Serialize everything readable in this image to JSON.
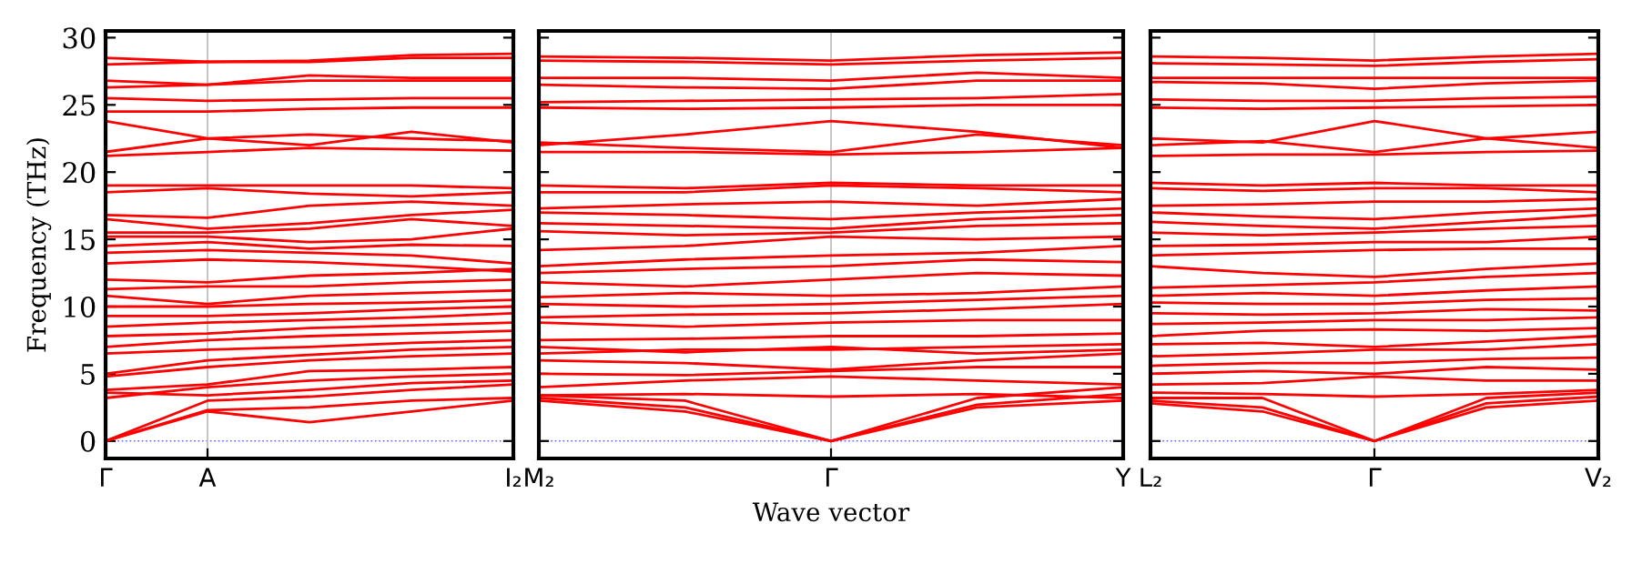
{
  "chart_data": [
    {
      "type": "line",
      "ylabel": "Frequency (THz)",
      "categories": [
        "Γ",
        "A",
        null,
        null,
        "I₂"
      ],
      "ylim": [
        -1.3,
        30.5
      ],
      "yticks": [
        0,
        5,
        10,
        15,
        20,
        25,
        30
      ],
      "legend": false,
      "marker": "none",
      "line_style": "solid",
      "ref_lines": [
        {
          "axis": "y",
          "value": 0,
          "color": "#6666ff",
          "line_style": "dotted"
        },
        {
          "axis": "x",
          "value": "A",
          "color": "#bbbbbb",
          "line_style": "solid"
        }
      ],
      "series": [
        {
          "color": "#ff0000",
          "values": [
            0,
            2.2,
            1.4,
            2.2,
            3.0
          ]
        },
        {
          "color": "#ff0000",
          "values": [
            0,
            2.3,
            2.5,
            3,
            3.2
          ]
        },
        {
          "color": "#ff0000",
          "values": [
            0,
            3.0,
            3.3,
            3.8,
            4.2
          ]
        },
        {
          "color": "#ff0000",
          "values": [
            3.2,
            4,
            4.5,
            4.8,
            5
          ]
        },
        {
          "color": "#ff0000",
          "values": [
            3.6,
            3.4,
            3.8,
            4.3,
            4.5
          ]
        },
        {
          "color": "#ff0000",
          "values": [
            3.8,
            4.2,
            5.2,
            5.3,
            5.5
          ]
        },
        {
          "color": "#ff0000",
          "values": [
            4.8,
            5.5,
            6,
            6.3,
            6.5
          ]
        },
        {
          "color": "#ff0000",
          "values": [
            5.0,
            6.0,
            6.4,
            6.8,
            7
          ]
        },
        {
          "color": "#ff0000",
          "values": [
            6.5,
            6.8,
            7.0,
            7.3,
            7.5
          ]
        },
        {
          "color": "#ff0000",
          "values": [
            7,
            7.5,
            7.8,
            8,
            8.2
          ]
        },
        {
          "color": "#ff0000",
          "values": [
            7.8,
            8.0,
            8.4,
            8.6,
            8.8
          ]
        },
        {
          "color": "#ff0000",
          "values": [
            8.5,
            8.8,
            9,
            9.2,
            9.5
          ]
        },
        {
          "color": "#ff0000",
          "values": [
            9.3,
            9.3,
            9.5,
            9.8,
            10
          ]
        },
        {
          "color": "#ff0000",
          "values": [
            10,
            10,
            10.2,
            10.3,
            10.5
          ]
        },
        {
          "color": "#ff0000",
          "values": [
            10.8,
            10.2,
            10.8,
            11,
            11.2
          ]
        },
        {
          "color": "#ff0000",
          "values": [
            11.3,
            11.5,
            11.5,
            11.8,
            12
          ]
        },
        {
          "color": "#ff0000",
          "values": [
            12,
            11.8,
            12.3,
            12.5,
            12.8
          ]
        },
        {
          "color": "#ff0000",
          "values": [
            13.2,
            13.5,
            13.3,
            13,
            12.6
          ]
        },
        {
          "color": "#ff0000",
          "values": [
            14,
            14.2,
            14,
            13.8,
            13.2
          ]
        },
        {
          "color": "#ff0000",
          "values": [
            14.5,
            14.8,
            14.3,
            14.6,
            14.5
          ]
        },
        {
          "color": "#ff0000",
          "values": [
            15.2,
            15.2,
            14.8,
            15,
            15.8
          ]
        },
        {
          "color": "#ff0000",
          "values": [
            15.5,
            15.5,
            15.8,
            16.5,
            16
          ]
        },
        {
          "color": "#ff0000",
          "values": [
            16.5,
            15.8,
            16.2,
            16.8,
            17.2
          ]
        },
        {
          "color": "#ff0000",
          "values": [
            16.8,
            16.6,
            17.5,
            17.8,
            17.5
          ]
        },
        {
          "color": "#ff0000",
          "values": [
            18.5,
            18.8,
            18.4,
            18.2,
            18.5
          ]
        },
        {
          "color": "#ff0000",
          "values": [
            19,
            19,
            19,
            19,
            18.8
          ]
        },
        {
          "color": "#ff0000",
          "values": [
            21.2,
            21.5,
            21.8,
            21.7,
            21.6
          ]
        },
        {
          "color": "#ff0000",
          "values": [
            21.5,
            22.5,
            22.8,
            22.5,
            22.3
          ]
        },
        {
          "color": "#ff0000",
          "values": [
            23.8,
            22.5,
            22,
            23,
            22.2
          ]
        },
        {
          "color": "#ff0000",
          "values": [
            24.5,
            24.5,
            24.7,
            24.8,
            24.8
          ]
        },
        {
          "color": "#ff0000",
          "values": [
            25.5,
            25.3,
            25.4,
            25.5,
            25.5
          ]
        },
        {
          "color": "#ff0000",
          "values": [
            26.3,
            26.5,
            26.8,
            26.8,
            26.8
          ]
        },
        {
          "color": "#ff0000",
          "values": [
            26.8,
            26.5,
            27.2,
            27,
            27
          ]
        },
        {
          "color": "#ff0000",
          "values": [
            28,
            28.2,
            28.2,
            28.5,
            28.5
          ]
        },
        {
          "color": "#ff0000",
          "values": [
            28.5,
            28.2,
            28.3,
            28.7,
            28.8
          ]
        }
      ]
    },
    {
      "type": "line",
      "xlabel": "Wave vector",
      "categories": [
        "M₂",
        null,
        "Γ",
        null,
        "Y"
      ],
      "ylim": [
        -1.3,
        30.5
      ],
      "yticks": [
        0,
        5,
        10,
        15,
        20,
        25,
        30
      ],
      "tick_labels": "x",
      "legend": false,
      "marker": "none",
      "line_style": "solid",
      "ref_lines": [
        {
          "axis": "y",
          "value": 0,
          "color": "#6666ff",
          "line_style": "dotted"
        },
        {
          "axis": "x",
          "value": "Γ",
          "color": "#bbbbbb",
          "line_style": "solid"
        }
      ],
      "series": [
        {
          "color": "#ff0000",
          "values": [
            3,
            2.2,
            0,
            2.5,
            3.0
          ]
        },
        {
          "color": "#ff0000",
          "values": [
            3.2,
            2.5,
            0,
            2.7,
            3.5
          ]
        },
        {
          "color": "#ff0000",
          "values": [
            3.4,
            3.0,
            0,
            3.2,
            4
          ]
        },
        {
          "color": "#ff0000",
          "values": [
            3.4,
            3.5,
            3.3,
            3.5,
            3.2
          ]
        },
        {
          "color": "#ff0000",
          "values": [
            4,
            4.5,
            4.8,
            4.5,
            4.2
          ]
        },
        {
          "color": "#ff0000",
          "values": [
            5,
            4.9,
            5.2,
            5.5,
            5.5
          ]
        },
        {
          "color": "#ff0000",
          "values": [
            6,
            5.8,
            5.3,
            6,
            6.5
          ]
        },
        {
          "color": "#ff0000",
          "values": [
            6.5,
            6.8,
            6.8,
            7,
            7.2
          ]
        },
        {
          "color": "#ff0000",
          "values": [
            7,
            6.6,
            7,
            6.5,
            6.8
          ]
        },
        {
          "color": "#ff0000",
          "values": [
            7.5,
            7.6,
            7.8,
            7.8,
            8
          ]
        },
        {
          "color": "#ff0000",
          "values": [
            8.8,
            8.5,
            8.8,
            9,
            9
          ]
        },
        {
          "color": "#ff0000",
          "values": [
            9.2,
            9.4,
            9.5,
            9.8,
            10.2
          ]
        },
        {
          "color": "#ff0000",
          "values": [
            10.2,
            10,
            10.2,
            10.5,
            10.8
          ]
        },
        {
          "color": "#ff0000",
          "values": [
            10.7,
            11,
            10.8,
            11,
            11.5
          ]
        },
        {
          "color": "#ff0000",
          "values": [
            11.8,
            11.5,
            12,
            12.5,
            12.3
          ]
        },
        {
          "color": "#ff0000",
          "values": [
            12.5,
            12.8,
            13,
            13.5,
            13.3
          ]
        },
        {
          "color": "#ff0000",
          "values": [
            13,
            13.5,
            13.8,
            14,
            14.5
          ]
        },
        {
          "color": "#ff0000",
          "values": [
            14.2,
            14.5,
            15.2,
            15,
            15.2
          ]
        },
        {
          "color": "#ff0000",
          "values": [
            15.6,
            15.3,
            15.5,
            16,
            16.2
          ]
        },
        {
          "color": "#ff0000",
          "values": [
            16.2,
            16,
            15.8,
            16.5,
            16.8
          ]
        },
        {
          "color": "#ff0000",
          "values": [
            17,
            16.8,
            16.5,
            17,
            17.3
          ]
        },
        {
          "color": "#ff0000",
          "values": [
            17.3,
            17.6,
            17.8,
            17.5,
            18
          ]
        },
        {
          "color": "#ff0000",
          "values": [
            18.5,
            18.5,
            19,
            18.8,
            18.5
          ]
        },
        {
          "color": "#ff0000",
          "values": [
            19,
            18.8,
            19.2,
            19,
            19
          ]
        },
        {
          "color": "#ff0000",
          "values": [
            21.5,
            21.5,
            21.3,
            21.5,
            21.8
          ]
        },
        {
          "color": "#ff0000",
          "values": [
            22,
            22.8,
            23.8,
            23,
            21.8
          ]
        },
        {
          "color": "#ff0000",
          "values": [
            22.2,
            21.8,
            21.5,
            22.8,
            22
          ]
        },
        {
          "color": "#ff0000",
          "values": [
            24.8,
            24.7,
            24.8,
            25,
            25
          ]
        },
        {
          "color": "#ff0000",
          "values": [
            25.2,
            25.3,
            25.4,
            25.5,
            25.8
          ]
        },
        {
          "color": "#ff0000",
          "values": [
            26.5,
            26.3,
            26.2,
            26.8,
            26.8
          ]
        },
        {
          "color": "#ff0000",
          "values": [
            27,
            27,
            26.8,
            27.4,
            27
          ]
        },
        {
          "color": "#ff0000",
          "values": [
            28.3,
            28.2,
            28,
            28.3,
            28.5
          ]
        },
        {
          "color": "#ff0000",
          "values": [
            28.6,
            28.5,
            28.3,
            28.7,
            28.9
          ]
        }
      ]
    },
    {
      "type": "line",
      "categories": [
        "L₂",
        null,
        "Γ",
        null,
        "V₂"
      ],
      "ylim": [
        -1.3,
        30.5
      ],
      "yticks": [
        0,
        5,
        10,
        15,
        20,
        25,
        30
      ],
      "tick_labels": "x",
      "legend": false,
      "marker": "none",
      "line_style": "solid",
      "ref_lines": [
        {
          "axis": "y",
          "value": 0,
          "color": "#6666ff",
          "line_style": "dotted"
        },
        {
          "axis": "x",
          "value": "Γ",
          "color": "#bbbbbb",
          "line_style": "solid"
        }
      ],
      "series": [
        {
          "color": "#ff0000",
          "values": [
            2.8,
            2.2,
            0,
            2.5,
            3.0
          ]
        },
        {
          "color": "#ff0000",
          "values": [
            3.0,
            2.5,
            0,
            2.8,
            3.3
          ]
        },
        {
          "color": "#ff0000",
          "values": [
            3.2,
            3.2,
            0,
            3.2,
            3.6
          ]
        },
        {
          "color": "#ff0000",
          "values": [
            3.6,
            3.5,
            3.3,
            3.5,
            3.8
          ]
        },
        {
          "color": "#ff0000",
          "values": [
            4.2,
            4.3,
            4.8,
            4.5,
            4.5
          ]
        },
        {
          "color": "#ff0000",
          "values": [
            5,
            5.2,
            5.0,
            5.5,
            5.3
          ]
        },
        {
          "color": "#ff0000",
          "values": [
            5.6,
            5.8,
            5.8,
            6.1,
            6.2
          ]
        },
        {
          "color": "#ff0000",
          "values": [
            6.3,
            6.5,
            6.8,
            6.8,
            7.2
          ]
        },
        {
          "color": "#ff0000",
          "values": [
            7.2,
            7.3,
            7.0,
            7.4,
            7.8
          ]
        },
        {
          "color": "#ff0000",
          "values": [
            7.8,
            8.2,
            8.3,
            8.2,
            8.4
          ]
        },
        {
          "color": "#ff0000",
          "values": [
            8.7,
            8.8,
            9,
            9,
            9.2
          ]
        },
        {
          "color": "#ff0000",
          "values": [
            9.5,
            9.4,
            9.5,
            9.8,
            9.7
          ]
        },
        {
          "color": "#ff0000",
          "values": [
            10.3,
            10.2,
            10.2,
            10.5,
            10.6
          ]
        },
        {
          "color": "#ff0000",
          "values": [
            10.8,
            11,
            10.8,
            11.2,
            11.5
          ]
        },
        {
          "color": "#ff0000",
          "values": [
            11.4,
            11.6,
            11.8,
            12.2,
            12.5
          ]
        },
        {
          "color": "#ff0000",
          "values": [
            13,
            12.5,
            12.2,
            12.8,
            13.2
          ]
        },
        {
          "color": "#ff0000",
          "values": [
            13.8,
            14,
            14.2,
            14.3,
            14.3
          ]
        },
        {
          "color": "#ff0000",
          "values": [
            14.5,
            14.6,
            14.8,
            14.8,
            15.2
          ]
        },
        {
          "color": "#ff0000",
          "values": [
            15.5,
            15.3,
            15.5,
            15.8,
            16
          ]
        },
        {
          "color": "#ff0000",
          "values": [
            16.3,
            16,
            15.8,
            16.3,
            16.8
          ]
        },
        {
          "color": "#ff0000",
          "values": [
            17,
            16.7,
            16.5,
            17,
            17.3
          ]
        },
        {
          "color": "#ff0000",
          "values": [
            17.5,
            17.6,
            17.8,
            17.8,
            18
          ]
        },
        {
          "color": "#ff0000",
          "values": [
            18.8,
            18.6,
            18.8,
            18.8,
            18.5
          ]
        },
        {
          "color": "#ff0000",
          "values": [
            19.2,
            19,
            19.2,
            19,
            19
          ]
        },
        {
          "color": "#ff0000",
          "values": [
            21.2,
            21.3,
            21.3,
            21.5,
            21.6
          ]
        },
        {
          "color": "#ff0000",
          "values": [
            22.5,
            22.2,
            23.8,
            22.5,
            23
          ]
        },
        {
          "color": "#ff0000",
          "values": [
            22,
            22.3,
            21.5,
            22.5,
            21.8
          ]
        },
        {
          "color": "#ff0000",
          "values": [
            24.8,
            24.7,
            24.8,
            24.9,
            25
          ]
        },
        {
          "color": "#ff0000",
          "values": [
            25.4,
            25.3,
            25.3,
            25.5,
            25.6
          ]
        },
        {
          "color": "#ff0000",
          "values": [
            26.7,
            26.6,
            26.2,
            26.6,
            26.8
          ]
        },
        {
          "color": "#ff0000",
          "values": [
            27.0,
            27.0,
            27.0,
            27.0,
            27.0
          ]
        },
        {
          "color": "#ff0000",
          "values": [
            28.1,
            28.0,
            27.9,
            28.2,
            28.4
          ]
        },
        {
          "color": "#ff0000",
          "values": [
            28.6,
            28.5,
            28.3,
            28.6,
            28.8
          ]
        }
      ]
    }
  ]
}
